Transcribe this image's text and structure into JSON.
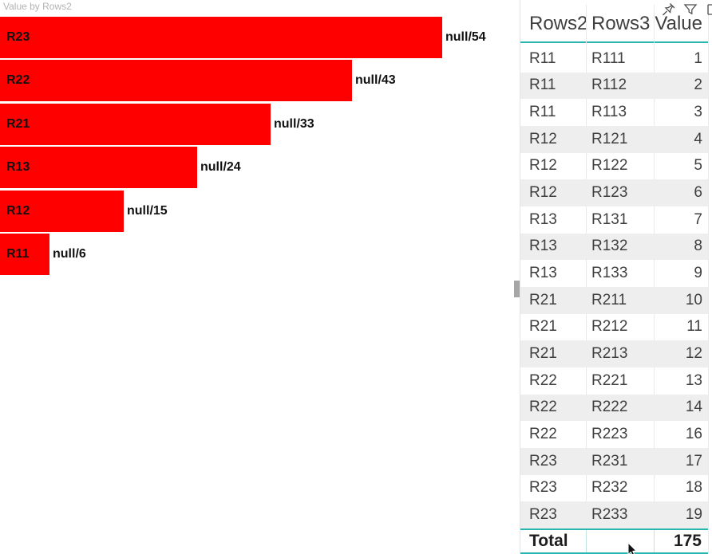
{
  "chart_data": [
    {
      "type": "bar",
      "orientation": "horizontal",
      "title": "Value by Rows2",
      "categories": [
        "R23",
        "R22",
        "R21",
        "R13",
        "R12",
        "R11"
      ],
      "values": [
        54,
        43,
        33,
        24,
        15,
        6
      ],
      "data_labels": [
        "null/54",
        "null/43",
        "null/33",
        "null/24",
        "null/15",
        "null/6"
      ],
      "series_color": "#fe0000",
      "xlim": [
        0,
        54
      ],
      "grid": false,
      "legend": "none",
      "ylabel": "",
      "xlabel": ""
    },
    {
      "type": "table",
      "columns": [
        "Rows2",
        "Rows3",
        "Value"
      ],
      "rows": [
        [
          "R11",
          "R111",
          "1"
        ],
        [
          "R11",
          "R112",
          "2"
        ],
        [
          "R11",
          "R113",
          "3"
        ],
        [
          "R12",
          "R121",
          "4"
        ],
        [
          "R12",
          "R122",
          "5"
        ],
        [
          "R12",
          "R123",
          "6"
        ],
        [
          "R13",
          "R131",
          "7"
        ],
        [
          "R13",
          "R132",
          "8"
        ],
        [
          "R13",
          "R133",
          "9"
        ],
        [
          "R21",
          "R211",
          "10"
        ],
        [
          "R21",
          "R212",
          "11"
        ],
        [
          "R21",
          "R213",
          "12"
        ],
        [
          "R22",
          "R221",
          "13"
        ],
        [
          "R22",
          "R222",
          "14"
        ],
        [
          "R22",
          "R223",
          "16"
        ],
        [
          "R23",
          "R231",
          "17"
        ],
        [
          "R23",
          "R232",
          "18"
        ],
        [
          "R23",
          "R233",
          "19"
        ]
      ],
      "total": {
        "label": "Total",
        "value": "175"
      }
    }
  ],
  "visual_header": {
    "icons": [
      "pin",
      "filter",
      "focus-partial"
    ]
  },
  "colors": {
    "bar_red": "#fe0000",
    "teal_border": "#28b6ae",
    "alt_row": "#eeeeee",
    "title_gray": "#b2b2b2",
    "text_dark": "#3f3f3f"
  }
}
